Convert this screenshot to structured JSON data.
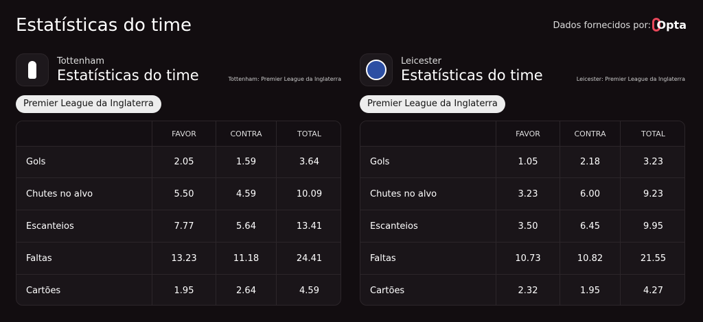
{
  "header": {
    "title": "Estatísticas do time",
    "provider": "Dados fornecidos por:",
    "brand": "Opta"
  },
  "teams": [
    {
      "name": "Tottenham",
      "title": "Estatísticas do time",
      "league_note": "Tottenham: Premier League da Inglaterra",
      "competition": "Premier League da Inglaterra",
      "table": {
        "columns": [
          "FAVOR",
          "CONTRA",
          "TOTAL"
        ],
        "rows": [
          {
            "label": "Gols",
            "values": [
              "2.05",
              "1.59",
              "3.64"
            ]
          },
          {
            "label": "Chutes no alvo",
            "values": [
              "5.50",
              "4.59",
              "10.09"
            ]
          },
          {
            "label": "Escanteios",
            "values": [
              "7.77",
              "5.64",
              "13.41"
            ]
          },
          {
            "label": "Faltas",
            "values": [
              "13.23",
              "11.18",
              "24.41"
            ]
          },
          {
            "label": "Cartões",
            "values": [
              "1.95",
              "2.64",
              "4.59"
            ]
          }
        ]
      }
    },
    {
      "name": "Leicester",
      "title": "Estatísticas do time",
      "league_note": "Leicester: Premier League da Inglaterra",
      "competition": "Premier League da Inglaterra",
      "table": {
        "columns": [
          "FAVOR",
          "CONTRA",
          "TOTAL"
        ],
        "rows": [
          {
            "label": "Gols",
            "values": [
              "1.05",
              "2.18",
              "3.23"
            ]
          },
          {
            "label": "Chutes no alvo",
            "values": [
              "3.23",
              "6.00",
              "9.23"
            ]
          },
          {
            "label": "Escanteios",
            "values": [
              "3.50",
              "6.45",
              "9.95"
            ]
          },
          {
            "label": "Faltas",
            "values": [
              "10.73",
              "10.82",
              "21.55"
            ]
          },
          {
            "label": "Cartões",
            "values": [
              "2.32",
              "1.95",
              "4.27"
            ]
          }
        ]
      }
    }
  ]
}
